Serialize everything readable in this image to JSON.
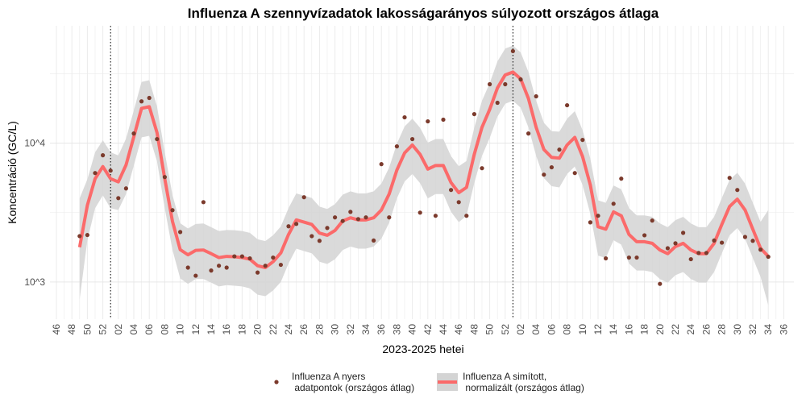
{
  "chart_data": {
    "type": "line",
    "title": "Influenza A szennyvízadatok lakosságarányos súlyozott országos átlaga",
    "x_label": "2023-2025 hetei",
    "y_label": "Koncentráció (GC/L)",
    "y_scale": "log",
    "grid": true,
    "legend_position": "bottom",
    "ylim": [
      540,
      70000
    ],
    "yticks": [
      {
        "value": 1000,
        "label": "10^3"
      },
      {
        "value": 10000,
        "label": "10^4"
      }
    ],
    "vlines": [
      7,
      59
    ],
    "categories": [
      "46",
      null,
      "48",
      null,
      "50",
      null,
      "52",
      null,
      "02",
      null,
      "04",
      null,
      "06",
      null,
      "08",
      null,
      "10",
      null,
      "12",
      null,
      "14",
      null,
      "16",
      null,
      "18",
      null,
      "20",
      null,
      "22",
      null,
      "24",
      null,
      "26",
      null,
      "28",
      null,
      "30",
      null,
      "32",
      null,
      "34",
      null,
      "36",
      null,
      "38",
      null,
      "40",
      null,
      "42",
      null,
      "44",
      null,
      "46",
      null,
      "48",
      null,
      "50",
      null,
      "52",
      null,
      "02",
      null,
      "04",
      null,
      "06",
      null,
      "08",
      null,
      "10",
      null,
      "12",
      null,
      "14",
      null,
      "16",
      null,
      "18",
      null,
      "20",
      null,
      "22",
      null,
      "24",
      null,
      "26",
      null,
      "28",
      null,
      "30",
      null,
      "32",
      null,
      "34",
      null,
      "36"
    ],
    "series": [
      {
        "name": "Influenza A nyers\n adatpontok (országos átlag)",
        "kind": "points",
        "color": "#7b3a2c",
        "values": [
          null,
          null,
          null,
          2140,
          2180,
          6090,
          8180,
          6340,
          4020,
          4720,
          11740,
          20000,
          21170,
          10700,
          5700,
          3290,
          2290,
          1270,
          1110,
          3760,
          1210,
          1310,
          1270,
          1530,
          1530,
          1480,
          1170,
          1310,
          1500,
          1330,
          2520,
          2620,
          4080,
          2140,
          1980,
          2450,
          2920,
          2750,
          3200,
          2840,
          2920,
          1990,
          7060,
          2920,
          9480,
          15340,
          10700,
          3160,
          14350,
          3000,
          14760,
          4600,
          3760,
          3000,
          16180,
          6600,
          26560,
          19540,
          26560,
          46000,
          28770,
          11740,
          21730,
          5930,
          6700,
          8980,
          18750,
          6090,
          10550,
          2690,
          3000,
          1480,
          3660,
          5550,
          1500,
          1500,
          2170,
          2770,
          970,
          1750,
          1900,
          2260,
          1460,
          1620,
          1620,
          1990,
          1920,
          5620,
          4600,
          2110,
          1980,
          1710,
          1520,
          null,
          null
        ]
      },
      {
        "name": "Influenza A simított,\n normalizált (országos átlag)",
        "kind": "smooth",
        "color": "#fb6a6a",
        "band_color": "#d4d4d4",
        "values": [
          null,
          null,
          null,
          1780,
          3570,
          5550,
          6780,
          5550,
          5260,
          6970,
          11100,
          17800,
          18300,
          11900,
          5550,
          2730,
          1710,
          1570,
          1690,
          1700,
          1600,
          1500,
          1530,
          1520,
          1500,
          1460,
          1310,
          1270,
          1400,
          1620,
          2200,
          2800,
          2700,
          2600,
          2250,
          2170,
          2350,
          2750,
          2900,
          2800,
          2800,
          2900,
          3300,
          4300,
          6400,
          8500,
          9700,
          8300,
          6500,
          6900,
          6900,
          5200,
          4400,
          4800,
          8300,
          13000,
          17500,
          25000,
          31000,
          32500,
          29000,
          21000,
          13000,
          9000,
          7900,
          7800,
          9700,
          11000,
          8000,
          5000,
          2500,
          2400,
          3200,
          3000,
          2200,
          1950,
          1950,
          1900,
          1700,
          1600,
          1800,
          1900,
          1700,
          1600,
          1600,
          1900,
          2600,
          3500,
          3950,
          3300,
          2400,
          1750,
          1530,
          null,
          null
        ],
        "lower": [
          null,
          null,
          null,
          750,
          2000,
          3400,
          4200,
          3400,
          3300,
          4300,
          6900,
          11000,
          11300,
          7400,
          3400,
          1700,
          1060,
          970,
          1050,
          1050,
          990,
          930,
          950,
          940,
          930,
          900,
          810,
          790,
          870,
          1000,
          1360,
          1740,
          1670,
          1610,
          1400,
          1350,
          1460,
          1700,
          1800,
          1740,
          1740,
          1800,
          2050,
          2670,
          4000,
          5300,
          6000,
          5150,
          4000,
          4300,
          4300,
          3200,
          2700,
          3000,
          5150,
          8100,
          10900,
          15500,
          19200,
          20200,
          18000,
          13000,
          8100,
          5600,
          4900,
          4800,
          6000,
          6800,
          5000,
          3100,
          1550,
          1490,
          2000,
          1860,
          1360,
          1210,
          1210,
          1180,
          1050,
          990,
          1120,
          1180,
          1050,
          990,
          990,
          1180,
          1610,
          2170,
          2450,
          2050,
          1490,
          1090,
          680,
          null,
          null
        ],
        "upper": [
          null,
          null,
          null,
          4000,
          5500,
          8600,
          10500,
          8600,
          8150,
          10800,
          17200,
          27600,
          28400,
          18400,
          8600,
          4230,
          2650,
          2430,
          2620,
          2640,
          2480,
          2330,
          2370,
          2360,
          2330,
          2260,
          2030,
          1970,
          2170,
          2510,
          3410,
          4340,
          4190,
          4030,
          3490,
          3360,
          3640,
          4260,
          4500,
          4340,
          4340,
          4500,
          5120,
          6670,
          9920,
          13200,
          15000,
          12900,
          10100,
          10700,
          10700,
          8060,
          6820,
          7440,
          12900,
          20200,
          27100,
          38800,
          48000,
          50400,
          45000,
          32600,
          20200,
          14000,
          12200,
          12100,
          15000,
          17000,
          12400,
          7750,
          3880,
          3720,
          4960,
          4650,
          3410,
          3020,
          3020,
          2950,
          2640,
          2480,
          2790,
          2950,
          2640,
          2480,
          2480,
          2950,
          4030,
          5430,
          6120,
          5120,
          3720,
          2710,
          3300,
          null,
          null
        ]
      }
    ]
  }
}
